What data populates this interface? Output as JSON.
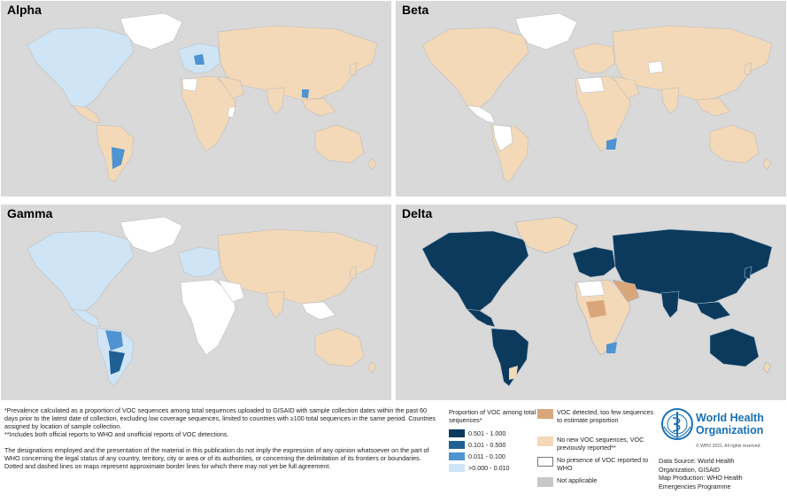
{
  "panels": [
    {
      "id": "alpha",
      "title": "Alpha"
    },
    {
      "id": "beta",
      "title": "Beta"
    },
    {
      "id": "gamma",
      "title": "Gamma"
    },
    {
      "id": "delta",
      "title": "Delta"
    }
  ],
  "notes": {
    "line1": "*Prevalence calculated as a proportion of VOC sequences among total sequences uploaded to GISAID with sample collection dates within the past 60 days prior to the latest date of collection, excluding low coverage sequences, limited to countries with ≥100 total sequences in the same period. Countries assigned by location of sample collection.",
    "line2": "**Includes both official reports to WHO and unofficial reports of VOC detections.",
    "disclaimer": "The designations employed and the presentation of the material in this publication do not imply the expression of any opinion whatsoever on the part of WHO concerning the legal status of any country, territory, city or area or of its authorities, or concerning the delimitation of its frontiers or boundaries. Dotted and dashed lines on maps represent approximate border lines for which there may not yet be full agreement."
  },
  "legend": {
    "title": "Proportion of VOC among total sequences*",
    "ranges": [
      {
        "label": "0.501 - 1.000",
        "color": "#0b3a5d"
      },
      {
        "label": "0.101 - 0.500",
        "color": "#1f5f93"
      },
      {
        "label": "0.011 - 0.100",
        "color": "#4f93d1"
      },
      {
        "label": ">0.000 - 0.010",
        "color": "#cfe5f5"
      }
    ],
    "categories": [
      {
        "label": "VOC detected, too few sequences to estimate proportion",
        "color": "#d9a67a"
      },
      {
        "label": "No new VOC sequences, VOC previously reported**",
        "color": "#f3d9b8"
      },
      {
        "label": "No presence of VOC reported to WHO",
        "color": "#ffffff"
      },
      {
        "label": "Not applicable",
        "color": "#c8c8c8"
      }
    ]
  },
  "who": {
    "org_line1": "World Health",
    "org_line2": "Organization",
    "copyright": "© WHO 2021. All rights reserved.",
    "source1": "Data Source: World Health",
    "source2": "Organization, GISAID",
    "production1": "Map Production: WHO Health",
    "production2": "Emergencies Programme"
  },
  "colors": {
    "ocean": "#d9d9d9",
    "land_default": "#f3d9b8",
    "greenland": "#ffffff",
    "border": "#bdbdbd"
  }
}
